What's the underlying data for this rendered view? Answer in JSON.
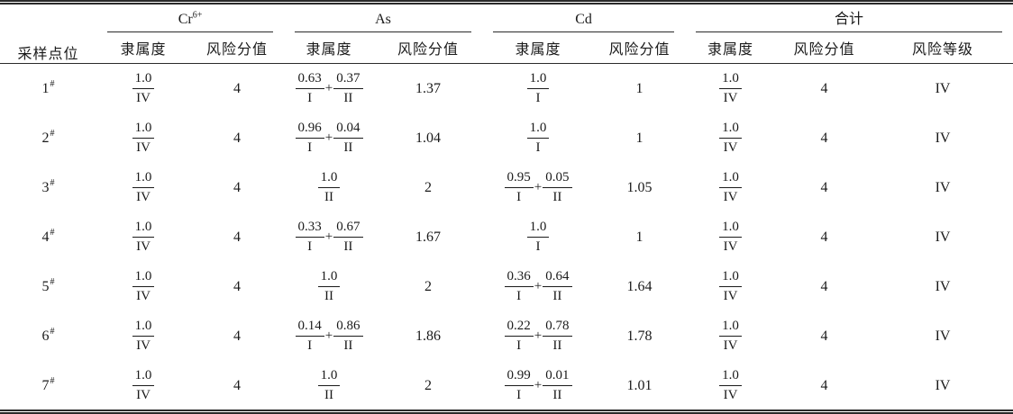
{
  "table": {
    "site_header": "采样点位",
    "groups": [
      {
        "id": "cr",
        "label": "Cr",
        "sup": "6+",
        "sub": [
          "隶属度",
          "风险分值"
        ]
      },
      {
        "id": "as",
        "label": "As",
        "sup": "",
        "sub": [
          "隶属度",
          "风险分值"
        ]
      },
      {
        "id": "cd",
        "label": "Cd",
        "sup": "",
        "sub": [
          "隶属度",
          "风险分值"
        ]
      },
      {
        "id": "total",
        "label": "合计",
        "sup": "",
        "sub": [
          "隶属度",
          "风险分值",
          "风险等级"
        ]
      }
    ],
    "rows": [
      {
        "site": "1",
        "site_sup": "#",
        "cells": [
          {
            "type": "fracs",
            "parts": [
              {
                "num": "1.0",
                "den": "IV"
              }
            ]
          },
          {
            "type": "text",
            "value": "4"
          },
          {
            "type": "fracs",
            "parts": [
              {
                "num": "0.63",
                "den": "I"
              },
              {
                "num": "0.37",
                "den": "II"
              }
            ]
          },
          {
            "type": "text",
            "value": "1.37"
          },
          {
            "type": "fracs",
            "parts": [
              {
                "num": "1.0",
                "den": "I"
              }
            ]
          },
          {
            "type": "text",
            "value": "1"
          },
          {
            "type": "fracs",
            "parts": [
              {
                "num": "1.0",
                "den": "IV"
              }
            ]
          },
          {
            "type": "text",
            "value": "4"
          },
          {
            "type": "text",
            "value": "IV"
          }
        ]
      },
      {
        "site": "2",
        "site_sup": "#",
        "cells": [
          {
            "type": "fracs",
            "parts": [
              {
                "num": "1.0",
                "den": "IV"
              }
            ]
          },
          {
            "type": "text",
            "value": "4"
          },
          {
            "type": "fracs",
            "parts": [
              {
                "num": "0.96",
                "den": "I"
              },
              {
                "num": "0.04",
                "den": "II"
              }
            ]
          },
          {
            "type": "text",
            "value": "1.04"
          },
          {
            "type": "fracs",
            "parts": [
              {
                "num": "1.0",
                "den": "I"
              }
            ]
          },
          {
            "type": "text",
            "value": "1"
          },
          {
            "type": "fracs",
            "parts": [
              {
                "num": "1.0",
                "den": "IV"
              }
            ]
          },
          {
            "type": "text",
            "value": "4"
          },
          {
            "type": "text",
            "value": "IV"
          }
        ]
      },
      {
        "site": "3",
        "site_sup": "#",
        "cells": [
          {
            "type": "fracs",
            "parts": [
              {
                "num": "1.0",
                "den": "IV"
              }
            ]
          },
          {
            "type": "text",
            "value": "4"
          },
          {
            "type": "fracs",
            "parts": [
              {
                "num": "1.0",
                "den": "II"
              }
            ]
          },
          {
            "type": "text",
            "value": "2"
          },
          {
            "type": "fracs",
            "parts": [
              {
                "num": "0.95",
                "den": "I"
              },
              {
                "num": "0.05",
                "den": "II"
              }
            ]
          },
          {
            "type": "text",
            "value": "1.05"
          },
          {
            "type": "fracs",
            "parts": [
              {
                "num": "1.0",
                "den": "IV"
              }
            ]
          },
          {
            "type": "text",
            "value": "4"
          },
          {
            "type": "text",
            "value": "IV"
          }
        ]
      },
      {
        "site": "4",
        "site_sup": "#",
        "cells": [
          {
            "type": "fracs",
            "parts": [
              {
                "num": "1.0",
                "den": "IV"
              }
            ]
          },
          {
            "type": "text",
            "value": "4"
          },
          {
            "type": "fracs",
            "parts": [
              {
                "num": "0.33",
                "den": "I"
              },
              {
                "num": "0.67",
                "den": "II"
              }
            ]
          },
          {
            "type": "text",
            "value": "1.67"
          },
          {
            "type": "fracs",
            "parts": [
              {
                "num": "1.0",
                "den": "I"
              }
            ]
          },
          {
            "type": "text",
            "value": "1"
          },
          {
            "type": "fracs",
            "parts": [
              {
                "num": "1.0",
                "den": "IV"
              }
            ]
          },
          {
            "type": "text",
            "value": "4"
          },
          {
            "type": "text",
            "value": "IV"
          }
        ]
      },
      {
        "site": "5",
        "site_sup": "#",
        "cells": [
          {
            "type": "fracs",
            "parts": [
              {
                "num": "1.0",
                "den": "IV"
              }
            ]
          },
          {
            "type": "text",
            "value": "4"
          },
          {
            "type": "fracs",
            "parts": [
              {
                "num": "1.0",
                "den": "II"
              }
            ]
          },
          {
            "type": "text",
            "value": "2"
          },
          {
            "type": "fracs",
            "parts": [
              {
                "num": "0.36",
                "den": "I"
              },
              {
                "num": "0.64",
                "den": "II"
              }
            ]
          },
          {
            "type": "text",
            "value": "1.64"
          },
          {
            "type": "fracs",
            "parts": [
              {
                "num": "1.0",
                "den": "IV"
              }
            ]
          },
          {
            "type": "text",
            "value": "4"
          },
          {
            "type": "text",
            "value": "IV"
          }
        ]
      },
      {
        "site": "6",
        "site_sup": "#",
        "cells": [
          {
            "type": "fracs",
            "parts": [
              {
                "num": "1.0",
                "den": "IV"
              }
            ]
          },
          {
            "type": "text",
            "value": "4"
          },
          {
            "type": "fracs",
            "parts": [
              {
                "num": "0.14",
                "den": "I"
              },
              {
                "num": "0.86",
                "den": "II"
              }
            ]
          },
          {
            "type": "text",
            "value": "1.86"
          },
          {
            "type": "fracs",
            "parts": [
              {
                "num": "0.22",
                "den": "I"
              },
              {
                "num": "0.78",
                "den": "II"
              }
            ]
          },
          {
            "type": "text",
            "value": "1.78"
          },
          {
            "type": "fracs",
            "parts": [
              {
                "num": "1.0",
                "den": "IV"
              }
            ]
          },
          {
            "type": "text",
            "value": "4"
          },
          {
            "type": "text",
            "value": "IV"
          }
        ]
      },
      {
        "site": "7",
        "site_sup": "#",
        "cells": [
          {
            "type": "fracs",
            "parts": [
              {
                "num": "1.0",
                "den": "IV"
              }
            ]
          },
          {
            "type": "text",
            "value": "4"
          },
          {
            "type": "fracs",
            "parts": [
              {
                "num": "1.0",
                "den": "II"
              }
            ]
          },
          {
            "type": "text",
            "value": "2"
          },
          {
            "type": "fracs",
            "parts": [
              {
                "num": "0.99",
                "den": "I"
              },
              {
                "num": "0.01",
                "den": "II"
              }
            ]
          },
          {
            "type": "text",
            "value": "1.01"
          },
          {
            "type": "fracs",
            "parts": [
              {
                "num": "1.0",
                "den": "IV"
              }
            ]
          },
          {
            "type": "text",
            "value": "4"
          },
          {
            "type": "text",
            "value": "IV"
          }
        ]
      }
    ]
  }
}
